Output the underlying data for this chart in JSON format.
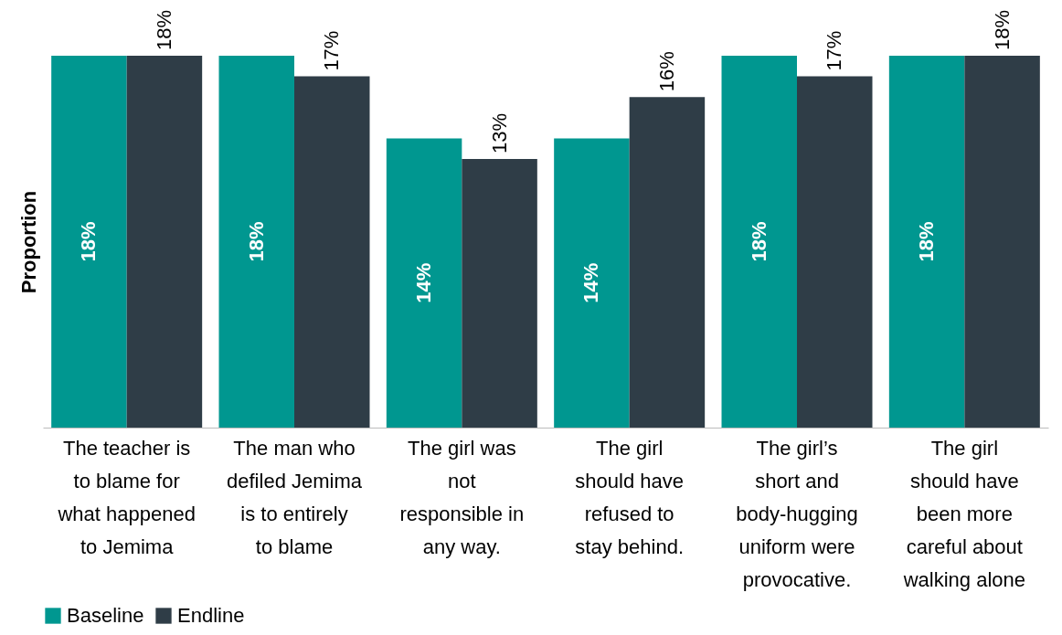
{
  "chart_data": {
    "type": "bar",
    "ylabel": "Proportion",
    "categories": [
      "The teacher is to blame for what happened to Jemima",
      "The man who defiled Jemima is to entirely to blame",
      "The girl was not responsible in any way.",
      "The girl should have refused to stay behind.",
      "The girl’s short and body-hugging uniform were provocative.",
      "The girl should have been more careful about walking alone"
    ],
    "series": [
      {
        "name": "Baseline",
        "color": "#009790",
        "values": [
          18,
          18,
          14,
          14,
          18,
          18
        ],
        "value_labels": [
          "18%",
          "18%",
          "14%",
          "14%",
          "18%",
          "18%"
        ]
      },
      {
        "name": "Endline",
        "color": "#2f3d47",
        "values": [
          18,
          17,
          13,
          16,
          17,
          18
        ],
        "value_labels": [
          "18%",
          "17%",
          "13%",
          "16%",
          "17%",
          "18%"
        ]
      }
    ],
    "legend": "bottom",
    "grid": false
  }
}
